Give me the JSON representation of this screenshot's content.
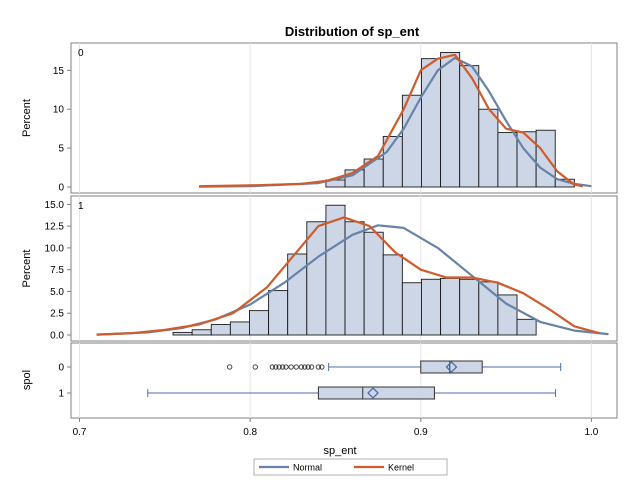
{
  "chart_data": {
    "type": "bar",
    "title": "Distribution of sp_ent",
    "xlabel": "sp_ent",
    "xlim": [
      0.695,
      1.015
    ],
    "x_ticks": [
      "0.7",
      "0.8",
      "0.9",
      "1.0"
    ],
    "bin_width": 0.0112,
    "panels": [
      {
        "label": "0",
        "ylabel": "Percent",
        "ylim": [
          0,
          18
        ],
        "y_ticks": [
          "0",
          "5",
          "10",
          "15"
        ],
        "bin_starts": [
          0.8444,
          0.8556,
          0.8668,
          0.878,
          0.8892,
          0.9004,
          0.9116,
          0.9228,
          0.934,
          0.9452,
          0.9564,
          0.9676,
          0.9788
        ],
        "values": [
          0.9,
          2.2,
          3.6,
          6.5,
          11.8,
          16.5,
          17.3,
          15.6,
          10.0,
          7.0,
          7.1,
          7.3,
          1.0
        ],
        "normal_curve": {
          "name": "Normal",
          "x": [
            0.77,
            0.8,
            0.84,
            0.86,
            0.88,
            0.89,
            0.9,
            0.91,
            0.92,
            0.93,
            0.94,
            0.95,
            0.96,
            0.97,
            0.98,
            0.99,
            1.0
          ],
          "y": [
            0.05,
            0.1,
            0.5,
            1.5,
            4.5,
            7.5,
            11.5,
            15.0,
            16.6,
            15.5,
            12.3,
            8.5,
            5.0,
            2.5,
            1.0,
            0.4,
            0.1
          ]
        },
        "kernel_curve": {
          "name": "Kernel",
          "x": [
            0.77,
            0.8,
            0.83,
            0.845,
            0.86,
            0.875,
            0.89,
            0.9,
            0.91,
            0.92,
            0.93,
            0.94,
            0.95,
            0.96,
            0.97,
            0.98,
            0.99,
            0.995
          ],
          "y": [
            0.1,
            0.2,
            0.4,
            0.8,
            1.8,
            4.0,
            10.0,
            15.0,
            16.5,
            17.0,
            14.0,
            10.0,
            7.5,
            7.0,
            5.0,
            2.0,
            0.3,
            0.1
          ]
        }
      },
      {
        "label": "1",
        "ylabel": "Percent",
        "ylim": [
          0,
          15.5
        ],
        "y_ticks": [
          "0.0",
          "2.5",
          "5.0",
          "7.5",
          "10.0",
          "12.5",
          "15.0"
        ],
        "bin_starts": [
          0.7548,
          0.766,
          0.7772,
          0.7884,
          0.7996,
          0.8108,
          0.822,
          0.8332,
          0.8444,
          0.8556,
          0.8668,
          0.878,
          0.8892,
          0.9004,
          0.9116,
          0.9228,
          0.934,
          0.9452,
          0.9564,
          0.9676,
          0.9788
        ],
        "values": [
          0.3,
          0.6,
          1.2,
          1.5,
          2.8,
          5.1,
          9.3,
          13.0,
          14.9,
          13.0,
          11.8,
          9.2,
          6.0,
          6.4,
          6.5,
          6.4,
          6.1,
          4.6,
          1.8,
          0,
          0
        ],
        "normal_curve": {
          "name": "Normal",
          "x": [
            0.71,
            0.74,
            0.76,
            0.78,
            0.8,
            0.82,
            0.84,
            0.86,
            0.875,
            0.89,
            0.91,
            0.93,
            0.95,
            0.97,
            0.99,
            1.01
          ],
          "y": [
            0.05,
            0.3,
            0.8,
            1.8,
            3.5,
            6.0,
            9.0,
            11.5,
            12.6,
            12.3,
            10.0,
            6.8,
            3.6,
            1.5,
            0.5,
            0.1
          ]
        },
        "kernel_curve": {
          "name": "Kernel",
          "x": [
            0.71,
            0.73,
            0.75,
            0.77,
            0.79,
            0.81,
            0.825,
            0.84,
            0.855,
            0.87,
            0.885,
            0.9,
            0.915,
            0.93,
            0.945,
            0.96,
            0.975,
            0.99,
            1.005
          ],
          "y": [
            0.05,
            0.2,
            0.6,
            1.2,
            2.5,
            5.5,
            9.0,
            12.5,
            13.5,
            12.5,
            9.5,
            7.5,
            6.6,
            6.6,
            6.0,
            4.8,
            3.0,
            1.0,
            0.2
          ]
        }
      }
    ],
    "boxplot": {
      "ylabel": "spol",
      "groups": [
        {
          "label": "0",
          "whisker_low": 0.846,
          "q1": 0.9,
          "median": 0.917,
          "mean": 0.918,
          "q3": 0.936,
          "whisker_high": 0.982,
          "outliers": [
            0.788,
            0.803,
            0.813,
            0.815,
            0.817,
            0.819,
            0.821,
            0.824,
            0.827,
            0.83,
            0.832,
            0.834,
            0.836,
            0.84,
            0.842
          ]
        },
        {
          "label": "1",
          "whisker_low": 0.74,
          "q1": 0.84,
          "median": 0.866,
          "mean": 0.872,
          "q3": 0.908,
          "whisker_high": 0.979,
          "outliers": []
        }
      ]
    },
    "legend": {
      "position": "bottom",
      "entries": [
        {
          "name": "Normal",
          "color": "#6783a8"
        },
        {
          "name": "Kernel",
          "color": "#d05b2c"
        }
      ]
    },
    "colors": {
      "bar_fill": "#cdd6e7",
      "bar_stroke": "#1a1a1a",
      "normal": "#6783a8",
      "kernel": "#d05b2c",
      "box": "#4d6ea8"
    },
    "grid": true
  }
}
